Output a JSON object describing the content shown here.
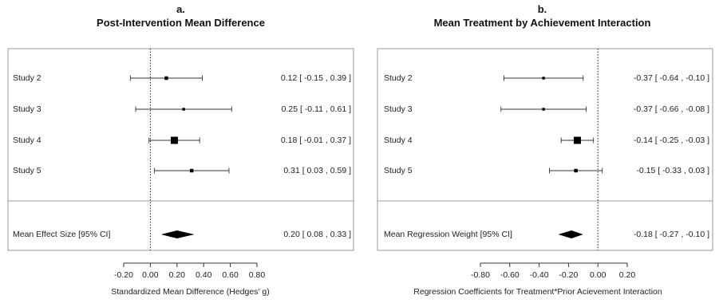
{
  "chart_data": [
    {
      "type": "forest",
      "panel_label": "a.",
      "title": "Post-Intervention Mean Difference",
      "xlabel": "Standardized Mean Difference (Hedges' g)",
      "xlim": [
        -0.25,
        0.85
      ],
      "ticks": [
        -0.2,
        0.0,
        0.2,
        0.4,
        0.6,
        0.8
      ],
      "tick_labels": [
        "-0.20",
        "0.00",
        "0.20",
        "0.40",
        "0.60",
        "0.80"
      ],
      "studies": [
        {
          "label": "Study 2",
          "estimate": 0.12,
          "lower": -0.15,
          "upper": 0.39,
          "ci_text": "0.12 [ -0.15 , 0.39 ]",
          "weight": 0.35
        },
        {
          "label": "Study 3",
          "estimate": 0.25,
          "lower": -0.11,
          "upper": 0.61,
          "ci_text": "0.25 [ -0.11 , 0.61 ]",
          "weight": 0.2
        },
        {
          "label": "Study 4",
          "estimate": 0.18,
          "lower": -0.01,
          "upper": 0.37,
          "ci_text": "0.18 [ -0.01 , 0.37 ]",
          "weight": 1.0
        },
        {
          "label": "Study 5",
          "estimate": 0.31,
          "lower": 0.03,
          "upper": 0.59,
          "ci_text": "0.31 [  0.03 , 0.59 ]",
          "weight": 0.35
        }
      ],
      "summary": {
        "label": "Mean Effect Size [95% CI]",
        "estimate": 0.2,
        "lower": 0.08,
        "upper": 0.33,
        "ci_text": "0.20 [  0.08 , 0.33 ]"
      }
    },
    {
      "type": "forest",
      "panel_label": "b.",
      "title": "Mean Treatment by Achievement Interaction",
      "xlabel": "Regression Coefficients for Treatment*Prior Acievement Interaction",
      "xlim": [
        -0.88,
        0.24
      ],
      "ticks": [
        -0.8,
        -0.6,
        -0.4,
        -0.2,
        0.0,
        0.2
      ],
      "tick_labels": [
        "-0.80",
        "-0.60",
        "-0.40",
        "-0.20",
        "0.00",
        "0.20"
      ],
      "studies": [
        {
          "label": "Study 2",
          "estimate": -0.37,
          "lower": -0.64,
          "upper": -0.1,
          "ci_text": "-0.37 [ -0.64 , -0.10 ]",
          "weight": 0.2
        },
        {
          "label": "Study 3",
          "estimate": -0.37,
          "lower": -0.66,
          "upper": -0.08,
          "ci_text": "-0.37 [ -0.66 , -0.08 ]",
          "weight": 0.2
        },
        {
          "label": "Study 4",
          "estimate": -0.14,
          "lower": -0.25,
          "upper": -0.03,
          "ci_text": "-0.14 [ -0.25 , -0.03 ]",
          "weight": 1.0
        },
        {
          "label": "Study 5",
          "estimate": -0.15,
          "lower": -0.33,
          "upper": 0.03,
          "ci_text": "-0.15 [ -0.33 ,  0.03 ]",
          "weight": 0.35
        }
      ],
      "summary": {
        "label": "Mean Regression Weight [95% CI]",
        "estimate": -0.18,
        "lower": -0.27,
        "upper": -0.1,
        "ci_text": "-0.18 [ -0.27 , -0.10 ]"
      }
    }
  ]
}
